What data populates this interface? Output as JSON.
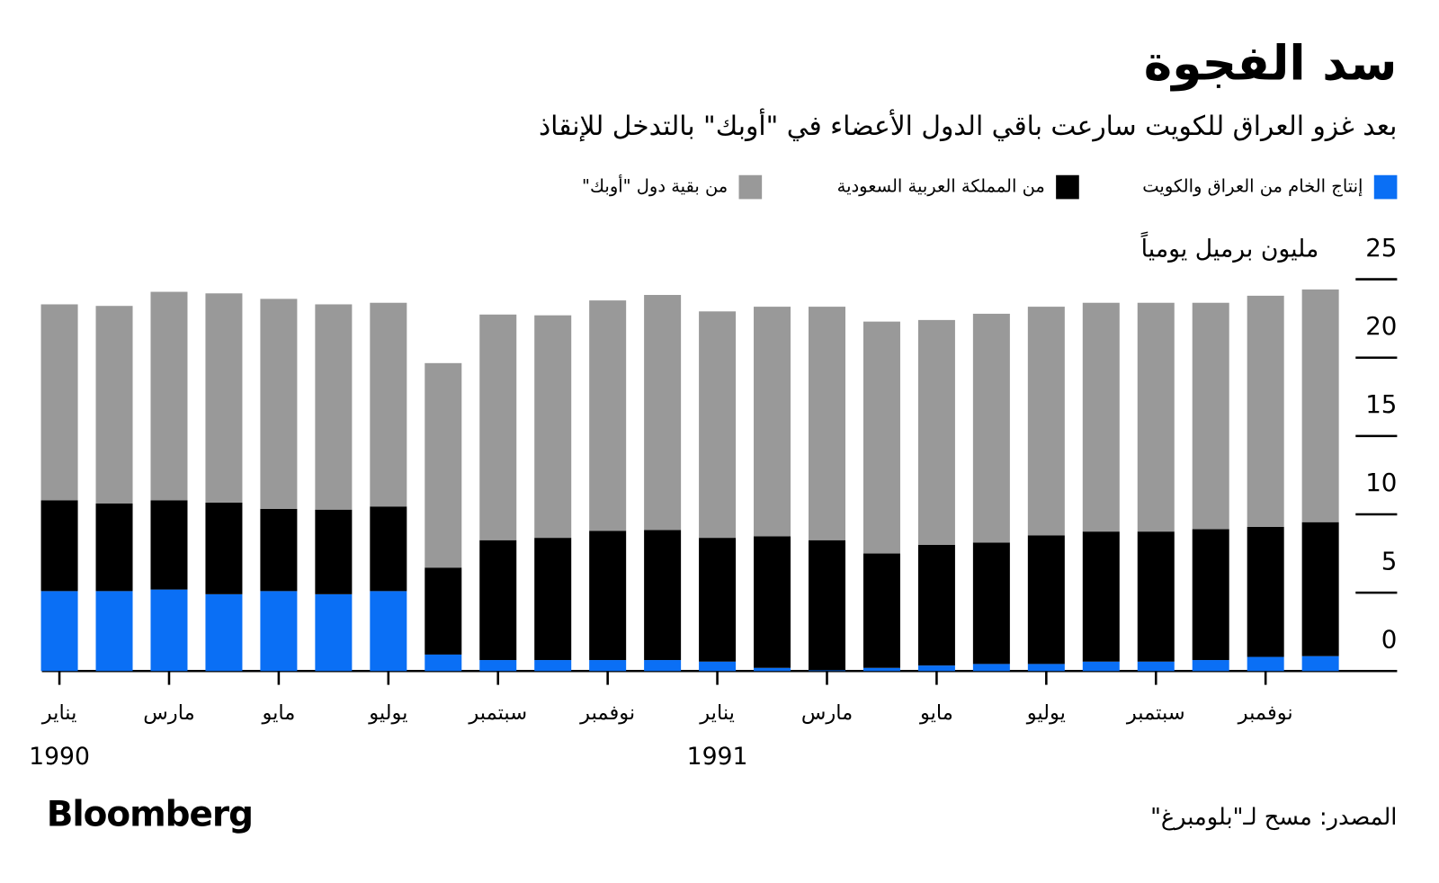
{
  "chart_data": {
    "type": "stacked_bar",
    "title": "سد الفجوة",
    "subtitle": "بعد غزو العراق للكويت سارعت باقي الدول الأعضاء في \"أوبك\" بالتدخل للإنقاذ",
    "y_label": "مليون برميل يومياً",
    "source": "المصدر: مسح لـ\"بلومبرغ\"",
    "brand": "Bloomberg",
    "categories": [
      "يناير",
      null,
      "مارس",
      null,
      "مايو",
      null,
      "يوليو",
      null,
      "سبتمبر",
      null,
      "نوفمبر",
      null,
      "يناير",
      null,
      "مارس",
      null,
      "مايو",
      null,
      "يوليو",
      null,
      "سبتمبر",
      null,
      "نوفمبر",
      null
    ],
    "category_years": [
      "1990",
      null,
      null,
      null,
      null,
      null,
      null,
      null,
      null,
      null,
      null,
      null,
      "1991",
      null,
      null,
      null,
      null,
      null,
      null,
      null,
      null,
      null,
      null,
      null
    ],
    "series": [
      {
        "name": "إنتاج الخام من العراق والكويت",
        "color": "#0a6ff5",
        "values": [
          5.1,
          5.1,
          5.2,
          4.9,
          5.1,
          4.9,
          5.1,
          1.05,
          0.7,
          0.7,
          0.7,
          0.7,
          0.6,
          0.2,
          0.05,
          0.2,
          0.35,
          0.45,
          0.45,
          0.6,
          0.6,
          0.7,
          0.9,
          0.95
        ]
      },
      {
        "name": "من المملكة العربية السعودية",
        "color": "#000000",
        "values": [
          5.8,
          5.6,
          5.7,
          5.85,
          5.25,
          5.4,
          5.4,
          5.55,
          7.65,
          7.8,
          8.25,
          8.3,
          7.9,
          8.4,
          8.3,
          7.3,
          7.7,
          7.75,
          8.2,
          8.3,
          8.3,
          8.35,
          8.3,
          8.55
        ]
      },
      {
        "name": "من بقية دول \"أوبك\"",
        "color": "#999999",
        "values": [
          12.5,
          12.6,
          13.3,
          13.35,
          13.4,
          13.1,
          13.0,
          13.05,
          14.4,
          14.2,
          14.7,
          15.0,
          14.45,
          14.65,
          14.9,
          14.8,
          14.35,
          14.6,
          14.6,
          14.6,
          14.6,
          14.45,
          14.75,
          14.85
        ]
      }
    ],
    "ylim": [
      0,
      25
    ],
    "yticks": [
      0,
      5,
      10,
      15,
      20,
      25
    ],
    "grid": false
  }
}
